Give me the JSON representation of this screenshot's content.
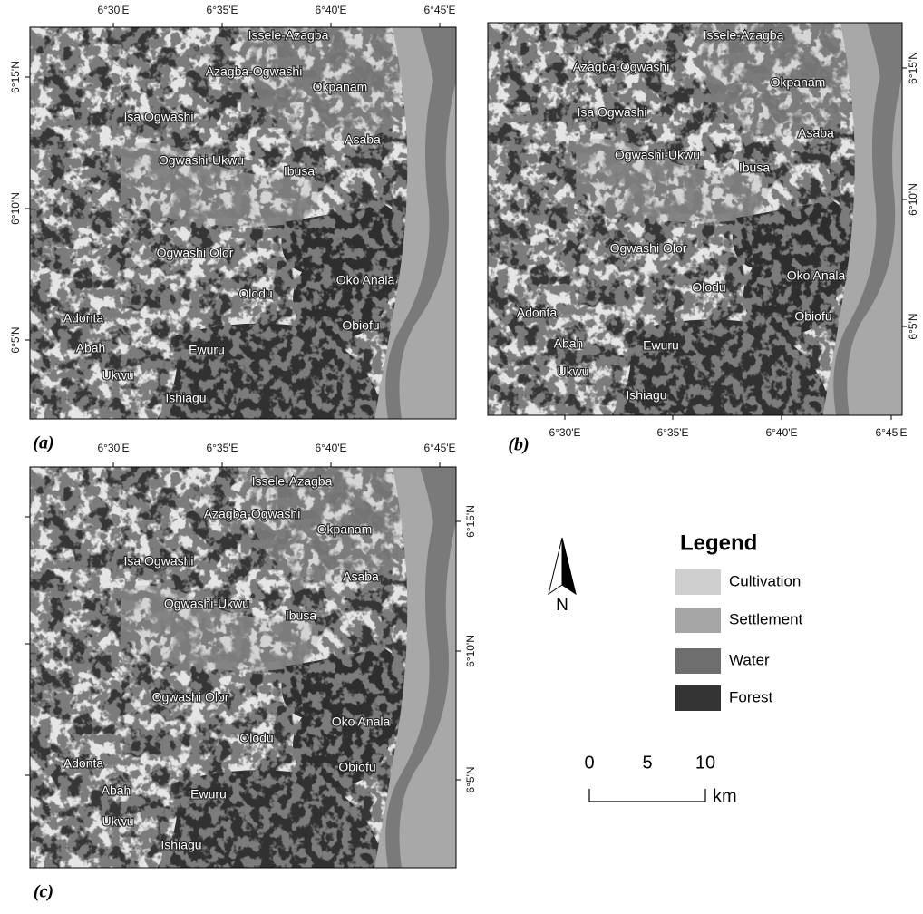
{
  "panels": [
    {
      "label": "(a)"
    },
    {
      "label": "(b)"
    },
    {
      "label": "(c)"
    }
  ],
  "lon_ticks": [
    "6°30'E",
    "6°35'E",
    "6°40'E",
    "6°45'E"
  ],
  "lat_ticks": [
    "6°15'N",
    "6°10'N",
    "6°5'N"
  ],
  "places": [
    "Issele-Azagba",
    "Azagba-Ogwashi",
    "Okpanam",
    "Isa Ogwashi",
    "Asaba",
    "Ogwashi-Ukwu",
    "Ibusa",
    "Ogwashi Olor",
    "Olodu",
    "Oko Anala",
    "Adonta",
    "Obiofu",
    "Abah",
    "Ewuru",
    "Ukwu",
    "Ishiagu"
  ],
  "north": "N",
  "legend": {
    "title": "Legend",
    "items": [
      "Cultivation",
      "Settlement",
      "Water",
      "Forest"
    ]
  },
  "scale_bar": {
    "labels": [
      "0",
      "5",
      "10"
    ],
    "unit": "km"
  }
}
